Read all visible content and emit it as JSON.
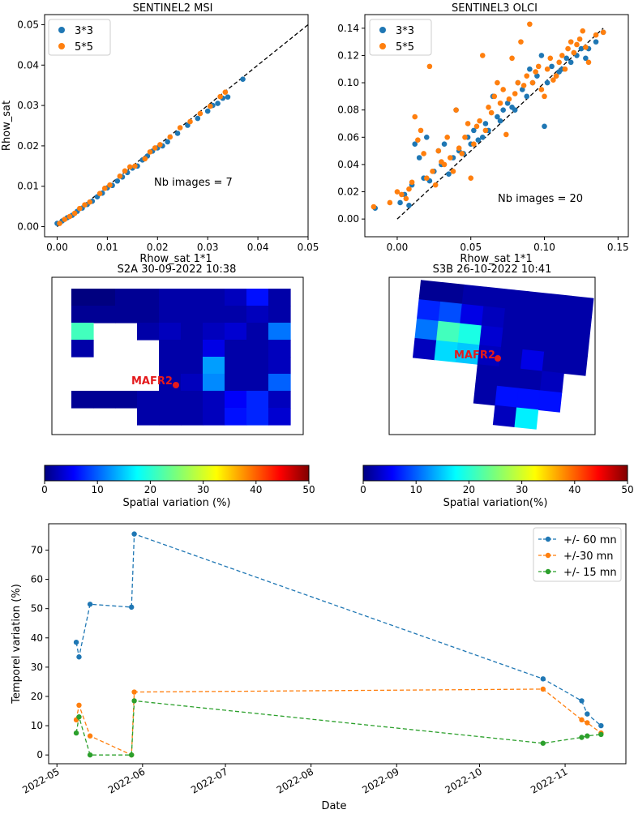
{
  "colors": {
    "blue": "#1f77b4",
    "orange": "#ff7f0e",
    "green": "#2ca02c",
    "red": "#e41a1c"
  },
  "chart_data": [
    {
      "id": "s2",
      "type": "scatter",
      "title": "SENTINEL2 MSI",
      "xlabel": "Rhow_sat 1*1",
      "ylabel": "Rhow_sat",
      "xlim": [
        -0.0025,
        0.05
      ],
      "ylim": [
        -0.0025,
        0.0525
      ],
      "xticks": [
        0,
        0.01,
        0.02,
        0.03,
        0.04,
        0.05
      ],
      "xtick_labels": [
        "0.00",
        "0.01",
        "0.02",
        "0.03",
        "0.04",
        "0.05"
      ],
      "yticks": [
        0,
        0.01,
        0.02,
        0.03,
        0.04,
        0.05
      ],
      "ytick_labels": [
        "0.00",
        "0.01",
        "0.02",
        "0.03",
        "0.04",
        "0.05"
      ],
      "annotation": "Nb images = 7",
      "one_to_one_line": [
        0,
        0.05
      ],
      "legend": [
        "3*3",
        "5*5"
      ],
      "series": [
        {
          "name": "3*3",
          "color": "#1f77b4",
          "x": [
            0.0,
            0.001,
            0.002,
            0.003,
            0.004,
            0.005,
            0.006,
            0.007,
            0.008,
            0.009,
            0.01,
            0.011,
            0.012,
            0.013,
            0.014,
            0.015,
            0.016,
            0.017,
            0.018,
            0.019,
            0.02,
            0.021,
            0.022,
            0.024,
            0.026,
            0.028,
            0.03,
            0.031,
            0.032,
            0.033,
            0.034,
            0.037
          ],
          "y": [
            0.0008,
            0.0014,
            0.0022,
            0.0028,
            0.0038,
            0.0046,
            0.0055,
            0.0063,
            0.0074,
            0.0083,
            0.0096,
            0.0102,
            0.0113,
            0.0123,
            0.0134,
            0.0145,
            0.015,
            0.0165,
            0.0175,
            0.0187,
            0.0195,
            0.02,
            0.021,
            0.0231,
            0.0251,
            0.0268,
            0.0286,
            0.03,
            0.0305,
            0.0318,
            0.0321,
            0.0365
          ]
        },
        {
          "name": "5*5",
          "color": "#ff7f0e",
          "x": [
            0.0005,
            0.0015,
            0.0025,
            0.0035,
            0.0045,
            0.0055,
            0.0065,
            0.0085,
            0.0095,
            0.0105,
            0.0125,
            0.0135,
            0.0145,
            0.0155,
            0.0175,
            0.0185,
            0.0195,
            0.0205,
            0.0225,
            0.0245,
            0.0265,
            0.0285,
            0.0305,
            0.0325,
            0.0335
          ],
          "y": [
            0.0008,
            0.0018,
            0.0025,
            0.0033,
            0.0045,
            0.0054,
            0.0061,
            0.0082,
            0.0095,
            0.0103,
            0.0125,
            0.0138,
            0.0148,
            0.015,
            0.0168,
            0.0185,
            0.0195,
            0.0203,
            0.0222,
            0.0245,
            0.026,
            0.028,
            0.0298,
            0.0322,
            0.0333
          ]
        }
      ]
    },
    {
      "id": "s3",
      "type": "scatter",
      "title": "SENTINEL3 OLCI",
      "xlabel": "Rhow_sat 1*1",
      "ylabel": "",
      "xlim": [
        -0.022,
        0.157
      ],
      "ylim": [
        -0.013,
        0.15
      ],
      "xticks": [
        0,
        0.05,
        0.1,
        0.15
      ],
      "xtick_labels": [
        "0.00",
        "0.05",
        "0.10",
        "0.15"
      ],
      "yticks": [
        0,
        0.02,
        0.04,
        0.06,
        0.08,
        0.1,
        0.12,
        0.14
      ],
      "ytick_labels": [
        "0.00",
        "0.02",
        "0.04",
        "0.06",
        "0.08",
        "0.10",
        "0.12",
        "0.14"
      ],
      "annotation": "Nb images = 20",
      "one_to_one_line": [
        0,
        0.14
      ],
      "legend": [
        "3*3",
        "5*5"
      ],
      "series": [
        {
          "name": "3*3",
          "color": "#1f77b4",
          "x": [
            -0.015,
            0.002,
            0.005,
            0.008,
            0.01,
            0.012,
            0.015,
            0.018,
            0.02,
            0.022,
            0.025,
            0.028,
            0.03,
            0.032,
            0.035,
            0.038,
            0.04,
            0.042,
            0.045,
            0.048,
            0.05,
            0.052,
            0.055,
            0.058,
            0.06,
            0.062,
            0.065,
            0.068,
            0.07,
            0.072,
            0.075,
            0.078,
            0.08,
            0.082,
            0.085,
            0.088,
            0.09,
            0.092,
            0.095,
            0.098,
            0.1,
            0.102,
            0.105,
            0.108,
            0.11,
            0.112,
            0.115,
            0.118,
            0.12,
            0.122,
            0.125,
            0.128,
            0.13,
            0.135,
            0.14
          ],
          "y": [
            0.008,
            0.012,
            0.018,
            0.01,
            0.025,
            0.055,
            0.045,
            0.03,
            0.06,
            0.028,
            0.035,
            0.05,
            0.04,
            0.055,
            0.033,
            0.045,
            0.08,
            0.05,
            0.048,
            0.06,
            0.055,
            0.065,
            0.058,
            0.06,
            0.07,
            0.065,
            0.09,
            0.075,
            0.072,
            0.08,
            0.085,
            0.082,
            0.08,
            0.1,
            0.095,
            0.09,
            0.11,
            0.1,
            0.105,
            0.12,
            0.068,
            0.1,
            0.112,
            0.105,
            0.108,
            0.11,
            0.118,
            0.115,
            0.122,
            0.12,
            0.125,
            0.118,
            0.125,
            0.13,
            0.137
          ]
        },
        {
          "name": "5*5",
          "color": "#ff7f0e",
          "x": [
            -0.016,
            -0.005,
            0.0,
            0.003,
            0.006,
            0.008,
            0.01,
            0.012,
            0.014,
            0.016,
            0.018,
            0.02,
            0.022,
            0.024,
            0.026,
            0.028,
            0.03,
            0.032,
            0.034,
            0.036,
            0.038,
            0.04,
            0.042,
            0.044,
            0.046,
            0.048,
            0.05,
            0.052,
            0.054,
            0.056,
            0.058,
            0.06,
            0.062,
            0.064,
            0.066,
            0.068,
            0.07,
            0.072,
            0.074,
            0.076,
            0.078,
            0.08,
            0.082,
            0.084,
            0.086,
            0.088,
            0.09,
            0.092,
            0.094,
            0.096,
            0.098,
            0.1,
            0.102,
            0.104,
            0.106,
            0.108,
            0.11,
            0.112,
            0.114,
            0.116,
            0.118,
            0.12,
            0.122,
            0.124,
            0.126,
            0.128,
            0.13,
            0.135,
            0.14
          ],
          "y": [
            0.009,
            0.012,
            0.02,
            0.018,
            0.015,
            0.022,
            0.027,
            0.075,
            0.058,
            0.065,
            0.048,
            0.03,
            0.112,
            0.035,
            0.025,
            0.05,
            0.042,
            0.04,
            0.06,
            0.045,
            0.035,
            0.08,
            0.052,
            0.048,
            0.06,
            0.07,
            0.03,
            0.055,
            0.068,
            0.072,
            0.12,
            0.065,
            0.082,
            0.078,
            0.09,
            0.1,
            0.085,
            0.095,
            0.062,
            0.088,
            0.118,
            0.092,
            0.1,
            0.13,
            0.098,
            0.105,
            0.143,
            0.1,
            0.108,
            0.112,
            0.095,
            0.09,
            0.11,
            0.118,
            0.102,
            0.105,
            0.115,
            0.12,
            0.11,
            0.125,
            0.13,
            0.122,
            0.128,
            0.132,
            0.138,
            0.126,
            0.115,
            0.135,
            0.137
          ]
        }
      ]
    },
    {
      "id": "map_s2",
      "type": "heatmap",
      "title": "S2A 30-09-2022 10:38",
      "marker_label": "MAFR2",
      "colorbar_label": "Spatial variation (%)",
      "colorbar_ticks": [
        "0",
        "10",
        "20",
        "30",
        "40",
        "50"
      ],
      "vmin": 0,
      "vmax": 50,
      "cells": [
        [
          0,
          0,
          1,
          1,
          2,
          2,
          2,
          3,
          7,
          2
        ],
        [
          1,
          1,
          1,
          1,
          2,
          2,
          2,
          2,
          3,
          2
        ],
        [
          22,
          null,
          null,
          2,
          3,
          2,
          3,
          4,
          2,
          12
        ],
        [
          2,
          null,
          null,
          null,
          2,
          2,
          5,
          2,
          2,
          3
        ],
        [
          null,
          null,
          null,
          null,
          2,
          2,
          14,
          2,
          2,
          3
        ],
        [
          null,
          null,
          null,
          null,
          2,
          3,
          13,
          2,
          2,
          11
        ],
        [
          1,
          1,
          1,
          2,
          2,
          2,
          3,
          6,
          8,
          3
        ],
        [
          null,
          null,
          null,
          2,
          2,
          2,
          3,
          7,
          8,
          4
        ]
      ]
    },
    {
      "id": "map_s3",
      "type": "heatmap",
      "title": "S3B 26-10-2022 10:41",
      "marker_label": "MAFR2",
      "colorbar_label": "Spatial variation(%)",
      "colorbar_ticks": [
        "0",
        "10",
        "20",
        "30",
        "40",
        "50"
      ],
      "vmin": 0,
      "vmax": 50,
      "cells": [
        [
          1,
          1,
          2,
          2,
          2,
          2,
          2,
          2
        ],
        [
          8,
          10,
          5,
          3,
          2,
          2,
          2,
          2
        ],
        [
          12,
          22,
          20,
          4,
          2,
          2,
          2,
          2
        ],
        [
          3,
          17,
          16,
          3,
          2,
          5,
          2,
          2
        ],
        [
          null,
          null,
          null,
          2,
          2,
          2,
          3,
          null
        ],
        [
          null,
          null,
          null,
          2,
          7,
          7,
          7,
          null
        ],
        [
          null,
          null,
          null,
          null,
          3,
          18,
          null,
          null
        ]
      ]
    },
    {
      "id": "timeseries",
      "type": "line",
      "xlabel": "Date",
      "ylabel": "Temporel variation (%)",
      "ylim": [
        -3,
        79
      ],
      "yticks": [
        0,
        10,
        20,
        30,
        40,
        50,
        60,
        70
      ],
      "ytick_labels": [
        "0",
        "10",
        "20",
        "30",
        "40",
        "50",
        "60",
        "70"
      ],
      "xticks": [
        "2022-05",
        "2022-06",
        "2022-07",
        "2022-08",
        "2022-09",
        "2022-10",
        "2022-11"
      ],
      "xtick_days": [
        0,
        31,
        61,
        92,
        123,
        153,
        184
      ],
      "xlim_days": [
        -3,
        206
      ],
      "series": [
        {
          "name": "+/- 60 mn",
          "color": "#1f77b4",
          "days": [
            7,
            8,
            12,
            27,
            28,
            176,
            190,
            192,
            197
          ],
          "values": [
            38.5,
            33.5,
            51.5,
            50.5,
            75.5,
            26,
            18.5,
            14,
            10
          ]
        },
        {
          "name": "+/-30 mn",
          "color": "#ff7f0e",
          "days": [
            7,
            8,
            12,
            27,
            28,
            176,
            190,
            192,
            197
          ],
          "values": [
            12,
            17,
            6.5,
            0,
            21.5,
            22.5,
            12,
            11,
            7.5
          ]
        },
        {
          "name": "+/- 15 mn",
          "color": "#2ca02c",
          "days": [
            7,
            8,
            12,
            27,
            28,
            176,
            190,
            192,
            197
          ],
          "values": [
            7.5,
            13,
            0,
            0,
            18.5,
            4,
            6,
            6.5,
            7
          ]
        }
      ]
    }
  ]
}
